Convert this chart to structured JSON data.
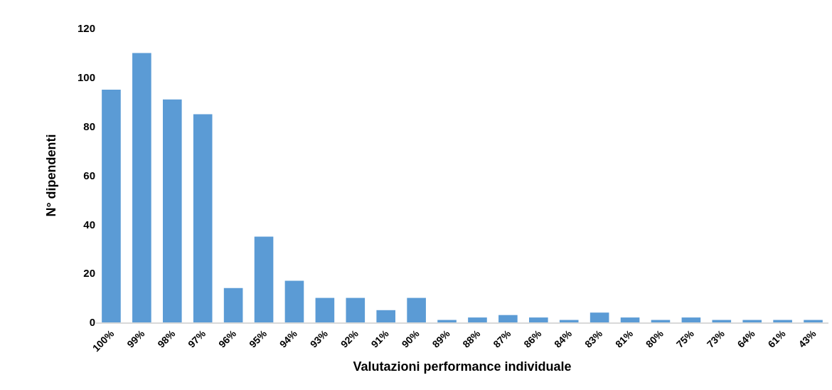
{
  "chart_data": {
    "type": "bar",
    "xlabel": "Valutazioni performance individuale",
    "ylabel": "N° dipendenti",
    "categories": [
      "100%",
      "99%",
      "98%",
      "97%",
      "96%",
      "95%",
      "94%",
      "93%",
      "92%",
      "91%",
      "90%",
      "89%",
      "88%",
      "87%",
      "86%",
      "84%",
      "83%",
      "81%",
      "80%",
      "75%",
      "73%",
      "64%",
      "61%",
      "43%"
    ],
    "values": [
      95,
      110,
      91,
      85,
      14,
      35,
      17,
      10,
      10,
      5,
      10,
      1,
      2,
      3,
      2,
      1,
      4,
      2,
      1,
      2,
      1,
      1,
      1,
      1
    ],
    "color": "#5b9bd5",
    "ylim": [
      0,
      120
    ],
    "yticks": [
      0,
      20,
      40,
      60,
      80,
      100,
      120
    ],
    "grid": false
  }
}
